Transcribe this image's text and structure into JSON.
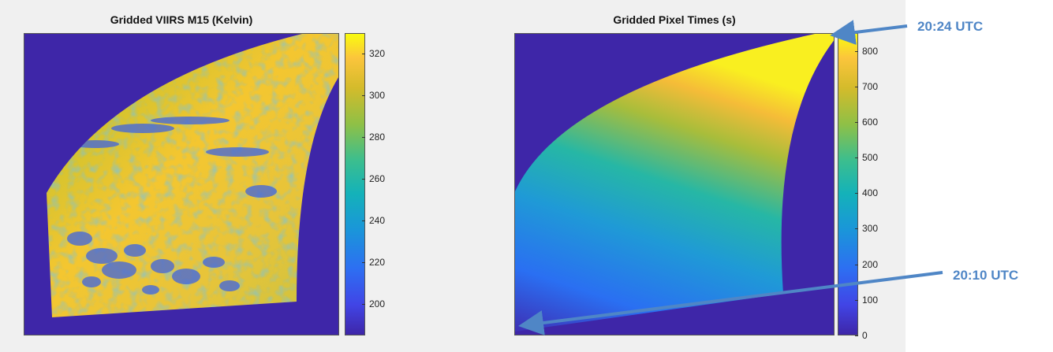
{
  "chart_data": [
    {
      "type": "heatmap",
      "title": "Gridded VIIRS M15 (Kelvin)",
      "colorbar": {
        "ticks": [
          200,
          220,
          240,
          260,
          280,
          300,
          320
        ],
        "range": [
          185,
          330
        ],
        "colormap": "parula"
      },
      "grid": false
    },
    {
      "type": "heatmap",
      "title": "Gridded Pixel Times (s)",
      "colorbar": {
        "ticks": [
          0,
          100,
          200,
          300,
          400,
          500,
          600,
          700,
          800
        ],
        "range": [
          0,
          850
        ],
        "colormap": "parula"
      },
      "grid": false
    }
  ],
  "annotations": [
    {
      "label": "20:24 UTC",
      "points_to": "top-right corner of pixel times",
      "color": "#4f86c6"
    },
    {
      "label": "20:10 UTC",
      "points_to": "bottom-left corner of pixel times",
      "color": "#4f86c6"
    }
  ],
  "colors": {
    "parula_low": "#3e26a8",
    "parula_high": "#f9fb0e",
    "annotation": "#4f86c6",
    "panel_background": "#f0f0f0"
  }
}
